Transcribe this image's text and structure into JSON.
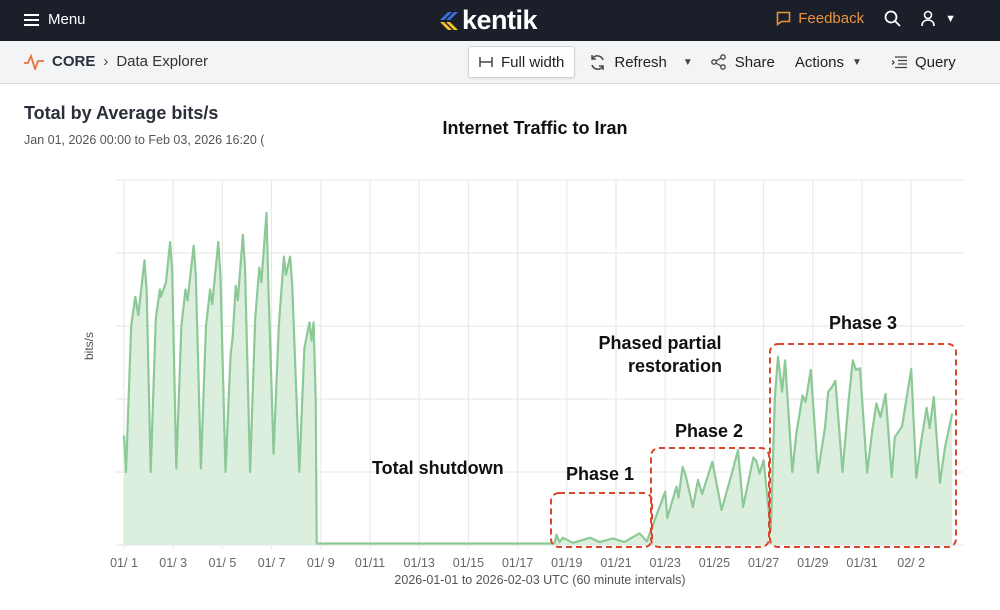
{
  "header": {
    "menu_label": "Menu",
    "logo_text": "kentik",
    "feedback_label": "Feedback",
    "icons": [
      "hamburger-icon",
      "search-icon",
      "user-icon",
      "chevron-down-icon"
    ]
  },
  "breadcrumb": {
    "root": "CORE",
    "page": "Data Explorer"
  },
  "toolbar": {
    "full_width": "Full width",
    "refresh": "Refresh",
    "share": "Share",
    "actions": "Actions",
    "query": "Query"
  },
  "panel": {
    "title": "Total by Average bits/s",
    "subtitle": "Jan 01, 2026 00:00 to Feb 03, 2026 16:20 ("
  },
  "chart_data": {
    "type": "area",
    "title": "Internet Traffic to Iran",
    "xlabel": "2026-01-01 to 2026-02-03 UTC (60 minute intervals)",
    "ylabel": "bits/s",
    "xlim": [
      "2026-01-01T00:00",
      "2026-02-03T20:00"
    ],
    "ylim": [
      0,
      5
    ],
    "y_tick_labels_shown": false,
    "grid": true,
    "line_color": "#8cc996",
    "fill_color": "#dcefdf",
    "annotation_color": "#d9472b",
    "x_ticks": [
      {
        "t": "2026-01-01T00:00",
        "label": "01/ 1"
      },
      {
        "t": "2026-01-03T00:00",
        "label": "01/ 3"
      },
      {
        "t": "2026-01-05T00:00",
        "label": "01/ 5"
      },
      {
        "t": "2026-01-07T00:00",
        "label": "01/ 7"
      },
      {
        "t": "2026-01-09T00:00",
        "label": "01/ 9"
      },
      {
        "t": "2026-01-11T00:00",
        "label": "01/11"
      },
      {
        "t": "2026-01-13T00:00",
        "label": "01/13"
      },
      {
        "t": "2026-01-15T00:00",
        "label": "01/15"
      },
      {
        "t": "2026-01-17T00:00",
        "label": "01/17"
      },
      {
        "t": "2026-01-19T00:00",
        "label": "01/19"
      },
      {
        "t": "2026-01-21T00:00",
        "label": "01/21"
      },
      {
        "t": "2026-01-23T00:00",
        "label": "01/23"
      },
      {
        "t": "2026-01-25T00:00",
        "label": "01/25"
      },
      {
        "t": "2026-01-27T00:00",
        "label": "01/27"
      },
      {
        "t": "2026-01-29T00:00",
        "label": "01/29"
      },
      {
        "t": "2026-01-31T00:00",
        "label": "01/31"
      },
      {
        "t": "2026-02-02T00:00",
        "label": "02/ 2"
      }
    ],
    "annotations": {
      "shutdown": "Total shutdown",
      "restoration_line1": "Phased partial",
      "restoration_line2": "restoration",
      "phase1": "Phase 1",
      "phase2": "Phase 2",
      "phase3": "Phase 3"
    },
    "points": [
      [
        "2026-01-01T00:00",
        1.5
      ],
      [
        "2026-01-01T02:00",
        1.0
      ],
      [
        "2026-01-01T07:00",
        3.0
      ],
      [
        "2026-01-01T11:00",
        3.4
      ],
      [
        "2026-01-01T14:00",
        3.15
      ],
      [
        "2026-01-01T20:00",
        3.9
      ],
      [
        "2026-01-01T22:00",
        3.5
      ],
      [
        "2026-01-02T02:00",
        1.0
      ],
      [
        "2026-01-02T07:00",
        3.1
      ],
      [
        "2026-01-02T11:00",
        3.5
      ],
      [
        "2026-01-02T12:00",
        3.4
      ],
      [
        "2026-01-02T17:00",
        3.6
      ],
      [
        "2026-01-02T21:00",
        4.15
      ],
      [
        "2026-01-02T23:00",
        3.75
      ],
      [
        "2026-01-03T03:00",
        1.05
      ],
      [
        "2026-01-03T08:00",
        3.0
      ],
      [
        "2026-01-03T12:00",
        3.5
      ],
      [
        "2026-01-03T14:00",
        3.35
      ],
      [
        "2026-01-03T20:00",
        4.1
      ],
      [
        "2026-01-03T22:00",
        3.7
      ],
      [
        "2026-01-04T03:00",
        1.05
      ],
      [
        "2026-01-04T08:00",
        3.0
      ],
      [
        "2026-01-04T12:00",
        3.5
      ],
      [
        "2026-01-04T14:00",
        3.3
      ],
      [
        "2026-01-04T20:00",
        4.15
      ],
      [
        "2026-01-04T22:00",
        3.7
      ],
      [
        "2026-01-05T03:00",
        1.0
      ],
      [
        "2026-01-05T08:00",
        2.6
      ],
      [
        "2026-01-05T10:00",
        2.85
      ],
      [
        "2026-01-05T13:00",
        3.55
      ],
      [
        "2026-01-05T15:00",
        3.35
      ],
      [
        "2026-01-05T20:00",
        4.25
      ],
      [
        "2026-01-05T22:00",
        3.8
      ],
      [
        "2026-01-06T03:00",
        1.0
      ],
      [
        "2026-01-06T08:00",
        3.1
      ],
      [
        "2026-01-06T12:00",
        3.8
      ],
      [
        "2026-01-06T14:00",
        3.6
      ],
      [
        "2026-01-06T19:00",
        4.55
      ],
      [
        "2026-01-06T21:00",
        3.5
      ],
      [
        "2026-01-07T02:00",
        1.25
      ],
      [
        "2026-01-07T07:00",
        3.0
      ],
      [
        "2026-01-07T12:00",
        3.95
      ],
      [
        "2026-01-07T14:00",
        3.7
      ],
      [
        "2026-01-07T18:00",
        3.95
      ],
      [
        "2026-01-07T20:00",
        3.6
      ],
      [
        "2026-01-08T03:00",
        1.0
      ],
      [
        "2026-01-08T08:00",
        2.7
      ],
      [
        "2026-01-08T13:00",
        3.05
      ],
      [
        "2026-01-08T15:00",
        2.8
      ],
      [
        "2026-01-08T17:00",
        3.05
      ],
      [
        "2026-01-08T19:00",
        2.0
      ],
      [
        "2026-01-08T20:00",
        0.02
      ],
      [
        "2026-01-18T12:00",
        0.02
      ],
      [
        "2026-01-18T14:00",
        0.14
      ],
      [
        "2026-01-18T17:00",
        0.04
      ],
      [
        "2026-01-18T20:00",
        0.1
      ],
      [
        "2026-01-19T06:00",
        0.03
      ],
      [
        "2026-01-19T23:00",
        0.1
      ],
      [
        "2026-01-20T08:00",
        0.04
      ],
      [
        "2026-01-20T21:00",
        0.09
      ],
      [
        "2026-01-21T08:00",
        0.04
      ],
      [
        "2026-01-21T23:00",
        0.16
      ],
      [
        "2026-01-22T06:00",
        0.05
      ],
      [
        "2026-01-23T00:00",
        0.73
      ],
      [
        "2026-01-23T02:00",
        0.37
      ],
      [
        "2026-01-23T11:00",
        0.8
      ],
      [
        "2026-01-23T13:00",
        0.65
      ],
      [
        "2026-01-23T17:00",
        1.07
      ],
      [
        "2026-01-23T20:00",
        0.95
      ],
      [
        "2026-01-24T03:00",
        0.52
      ],
      [
        "2026-01-24T08:00",
        0.89
      ],
      [
        "2026-01-24T12:00",
        0.7
      ],
      [
        "2026-01-24T22:00",
        1.14
      ],
      [
        "2026-01-25T07:00",
        0.48
      ],
      [
        "2026-01-25T17:00",
        0.98
      ],
      [
        "2026-01-25T23:00",
        1.3
      ],
      [
        "2026-01-26T04:00",
        0.52
      ],
      [
        "2026-01-26T14:00",
        1.2
      ],
      [
        "2026-01-26T17:00",
        1.15
      ],
      [
        "2026-01-26T20:00",
        0.98
      ],
      [
        "2026-01-27T00:00",
        1.16
      ],
      [
        "2026-01-27T07:00",
        0.2
      ],
      [
        "2026-01-27T11:00",
        2.03
      ],
      [
        "2026-01-27T14:00",
        2.58
      ],
      [
        "2026-01-27T18:00",
        2.1
      ],
      [
        "2026-01-27T21:00",
        2.53
      ],
      [
        "2026-01-28T04:00",
        1.0
      ],
      [
        "2026-01-28T08:00",
        1.53
      ],
      [
        "2026-01-28T14:00",
        2.05
      ],
      [
        "2026-01-28T17:00",
        1.96
      ],
      [
        "2026-01-28T22:00",
        2.4
      ],
      [
        "2026-01-29T05:00",
        0.99
      ],
      [
        "2026-01-29T12:00",
        1.62
      ],
      [
        "2026-01-29T15:00",
        2.1
      ],
      [
        "2026-01-29T18:00",
        2.15
      ],
      [
        "2026-01-29T22:00",
        2.25
      ],
      [
        "2026-01-30T05:00",
        1.0
      ],
      [
        "2026-01-30T11:00",
        1.99
      ],
      [
        "2026-01-30T15:00",
        2.53
      ],
      [
        "2026-01-30T18:00",
        2.4
      ],
      [
        "2026-01-30T22:00",
        2.42
      ],
      [
        "2026-01-31T05:00",
        0.99
      ],
      [
        "2026-01-31T10:00",
        1.57
      ],
      [
        "2026-01-31T14:00",
        1.94
      ],
      [
        "2026-01-31T18:00",
        1.75
      ],
      [
        "2026-01-31T23:00",
        2.07
      ],
      [
        "2026-02-01T05:00",
        0.93
      ],
      [
        "2026-02-01T08:00",
        1.48
      ],
      [
        "2026-02-01T15:00",
        1.62
      ],
      [
        "2026-02-02T00:00",
        2.41
      ],
      [
        "2026-02-02T05:00",
        0.92
      ],
      [
        "2026-02-02T10:00",
        1.44
      ],
      [
        "2026-02-02T15:00",
        1.88
      ],
      [
        "2026-02-02T18:00",
        1.6
      ],
      [
        "2026-02-02T22:00",
        2.03
      ],
      [
        "2026-02-03T04:00",
        0.85
      ],
      [
        "2026-02-03T09:00",
        1.34
      ],
      [
        "2026-02-03T16:00",
        1.8
      ]
    ]
  }
}
